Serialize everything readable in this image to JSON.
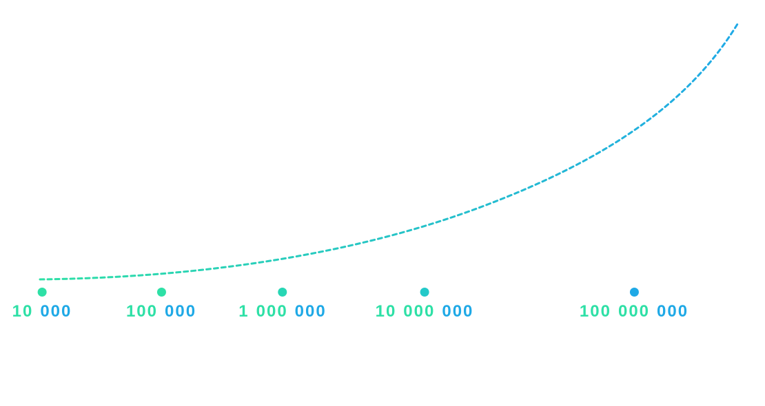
{
  "colors": {
    "green": "#2ee0a6",
    "teal": "#23c9c9",
    "blue": "#1fa9e6"
  },
  "milestones": [
    {
      "value": 10000,
      "groups": [
        "10",
        "000"
      ],
      "group_colors": [
        "green",
        "blue"
      ],
      "dot_color": "#2ee0a6"
    },
    {
      "value": 100000,
      "groups": [
        "100",
        "000"
      ],
      "group_colors": [
        "green",
        "blue"
      ],
      "dot_color": "#2ee0a6"
    },
    {
      "value": 1000000,
      "groups": [
        "1",
        "000",
        "000"
      ],
      "group_colors": [
        "green",
        "green",
        "blue"
      ],
      "dot_color": "#27d6b4"
    },
    {
      "value": 10000000,
      "groups": [
        "10",
        "000",
        "000"
      ],
      "group_colors": [
        "green",
        "green",
        "blue"
      ],
      "dot_color": "#23c9c9"
    },
    {
      "value": 100000000,
      "groups": [
        "100",
        "000",
        "000"
      ],
      "group_colors": [
        "green",
        "green",
        "blue"
      ],
      "dot_color": "#1fa9e6"
    }
  ],
  "curve": {
    "style": "dotted",
    "shape": "exponential growth",
    "gradient": [
      "#2ee0a6",
      "#1fa9e6"
    ]
  }
}
